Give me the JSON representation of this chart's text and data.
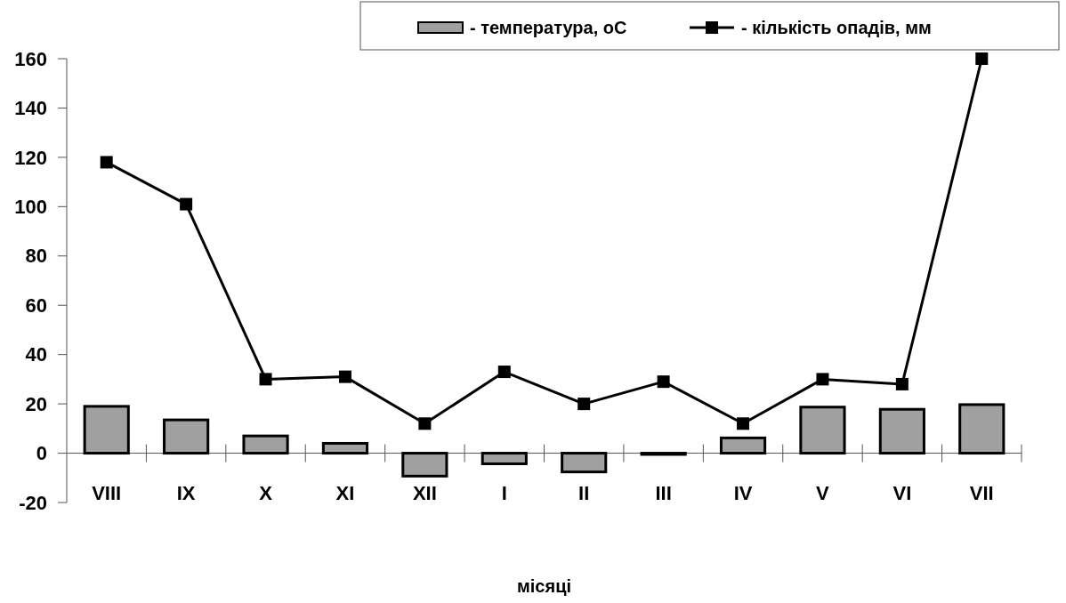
{
  "chart_data": {
    "type": "bar",
    "xlabel": "місяці",
    "categories": [
      "VIII",
      "IX",
      "X",
      "XI",
      "XII",
      "I",
      "II",
      "III",
      "IV",
      "V",
      "VI",
      "VII"
    ],
    "series": [
      {
        "name": "- температура, оС",
        "color": "#a0a0a0",
        "values": [
          19,
          13.5,
          7,
          4,
          -9.3,
          -4.3,
          -7.6,
          -0.5,
          6.2,
          18.7,
          17.8,
          19.7
        ]
      },
      {
        "name": "- кількість опадів, мм",
        "type": "line",
        "color": "#000000",
        "marker": "square",
        "values": [
          118,
          101,
          30,
          31,
          12,
          33,
          20,
          29,
          12,
          30,
          28,
          160
        ]
      }
    ],
    "ylim": [
      -20,
      160
    ],
    "yticks": [
      -20,
      0,
      20,
      40,
      60,
      80,
      100,
      120,
      140,
      160
    ],
    "legend": "top right",
    "grid": false
  }
}
